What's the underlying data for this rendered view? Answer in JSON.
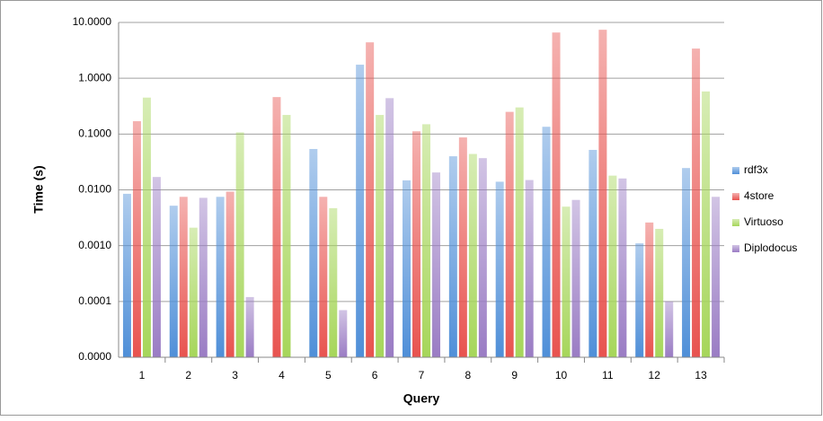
{
  "chart_data": {
    "type": "bar",
    "x_label": "Query",
    "y_label": "Time (s)",
    "log_scale": true,
    "grid": true,
    "legend": "right",
    "categories": [
      "1",
      "2",
      "3",
      "4",
      "5",
      "6",
      "7",
      "8",
      "9",
      "10",
      "11",
      "12",
      "13"
    ],
    "ylim": [
      1e-05,
      10
    ],
    "yticks": [
      {
        "value": 1e-05,
        "label": "0.0000"
      },
      {
        "value": 0.0001,
        "label": "0.0001"
      },
      {
        "value": 0.001,
        "label": "0.0010"
      },
      {
        "value": 0.01,
        "label": "0.0100"
      },
      {
        "value": 0.1,
        "label": "0.1000"
      },
      {
        "value": 1,
        "label": "1.0000"
      },
      {
        "value": 10,
        "label": "10.0000"
      }
    ],
    "series": [
      {
        "name": "rdf3x",
        "color": "#4f8fd8",
        "values": [
          0.0085,
          0.0052,
          0.0075,
          null,
          0.054,
          1.75,
          0.0148,
          0.04,
          0.014,
          0.135,
          0.052,
          0.0011,
          0.0246
        ]
      },
      {
        "name": "4store",
        "color": "#e8534f",
        "values": [
          0.17,
          0.0075,
          0.0093,
          0.46,
          0.0075,
          4.4,
          0.112,
          0.087,
          0.25,
          6.6,
          7.4,
          0.0026,
          3.4
        ]
      },
      {
        "name": "Virtuoso",
        "color": "#a6d65a",
        "values": [
          0.45,
          0.0021,
          0.107,
          0.22,
          0.0047,
          0.22,
          0.15,
          0.044,
          0.3,
          0.005,
          0.018,
          0.002,
          0.58
        ]
      },
      {
        "name": "Diplodocus",
        "color": "#9a7cc4",
        "values": [
          0.017,
          0.0072,
          0.00012,
          null,
          7e-05,
          0.44,
          0.0205,
          0.037,
          0.015,
          0.0066,
          0.016,
          0.0001,
          0.0075
        ]
      }
    ]
  }
}
